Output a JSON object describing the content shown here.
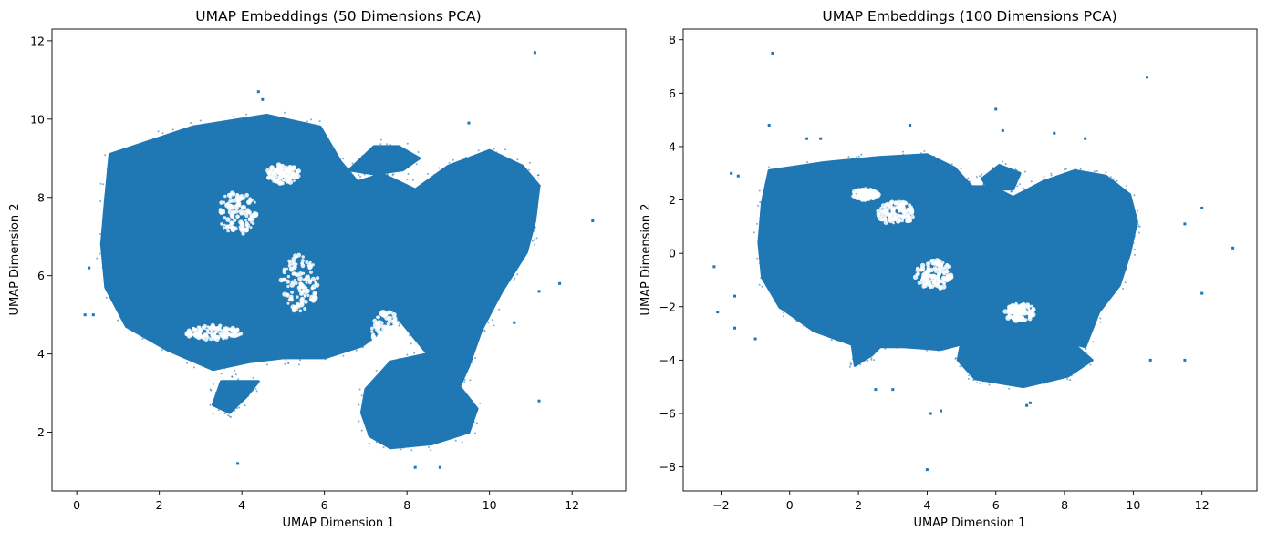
{
  "chart_data": [
    {
      "type": "scatter",
      "title": "UMAP Embeddings (50 Dimensions PCA)",
      "xlabel": "UMAP Dimension 1",
      "ylabel": "UMAP Dimension 2",
      "xlim": [
        -0.6,
        13.3
      ],
      "ylim": [
        0.5,
        12.3
      ],
      "xticks": [
        0,
        2,
        4,
        6,
        8,
        10,
        12
      ],
      "yticks": [
        2,
        4,
        6,
        8,
        10,
        12
      ],
      "grid": false,
      "color": "#1f77b4",
      "clusters": [
        {
          "name": "main-body",
          "points": [
            [
              0.8,
              9.1
            ],
            [
              2.8,
              9.8
            ],
            [
              4.6,
              10.1
            ],
            [
              5.9,
              9.8
            ],
            [
              6.4,
              8.9
            ],
            [
              6.8,
              8.4
            ],
            [
              7.4,
              8.6
            ],
            [
              8.2,
              8.2
            ],
            [
              9.0,
              8.8
            ],
            [
              10.0,
              9.2
            ],
            [
              10.8,
              8.8
            ],
            [
              11.2,
              8.3
            ],
            [
              11.1,
              7.4
            ],
            [
              10.9,
              6.6
            ],
            [
              10.3,
              5.6
            ],
            [
              9.8,
              4.6
            ],
            [
              9.5,
              3.7
            ],
            [
              9.2,
              3.0
            ],
            [
              8.5,
              4.0
            ],
            [
              7.8,
              4.9
            ],
            [
              6.9,
              4.2
            ],
            [
              6.0,
              3.9
            ],
            [
              5.0,
              3.9
            ],
            [
              4.2,
              3.8
            ],
            [
              3.3,
              3.6
            ],
            [
              2.2,
              4.1
            ],
            [
              1.2,
              4.7
            ],
            [
              0.7,
              5.7
            ],
            [
              0.6,
              6.8
            ],
            [
              0.7,
              8.0
            ]
          ]
        },
        {
          "name": "bottom-lobe",
          "points": [
            [
              7.0,
              3.1
            ],
            [
              7.6,
              3.8
            ],
            [
              8.5,
              4.0
            ],
            [
              9.1,
              3.4
            ],
            [
              9.7,
              2.6
            ],
            [
              9.5,
              2.0
            ],
            [
              8.6,
              1.7
            ],
            [
              7.6,
              1.6
            ],
            [
              7.1,
              1.9
            ],
            [
              6.9,
              2.5
            ]
          ]
        },
        {
          "name": "lower-left-tail",
          "points": [
            [
              3.5,
              3.3
            ],
            [
              4.4,
              3.3
            ],
            [
              4.1,
              2.9
            ],
            [
              3.7,
              2.5
            ],
            [
              3.3,
              2.7
            ]
          ]
        },
        {
          "name": "top-blob",
          "points": [
            [
              6.6,
              8.7
            ],
            [
              7.2,
              9.3
            ],
            [
              7.8,
              9.3
            ],
            [
              8.3,
              9.0
            ],
            [
              7.9,
              8.7
            ],
            [
              7.2,
              8.6
            ]
          ]
        }
      ],
      "holes": [
        {
          "cx": 3.9,
          "cy": 7.6,
          "rx": 0.5,
          "ry": 0.55
        },
        {
          "cx": 5.4,
          "cy": 5.8,
          "rx": 0.45,
          "ry": 0.75
        },
        {
          "cx": 3.3,
          "cy": 4.55,
          "rx": 0.7,
          "ry": 0.18
        },
        {
          "cx": 7.5,
          "cy": 4.6,
          "rx": 0.35,
          "ry": 0.5
        },
        {
          "cx": 5.0,
          "cy": 8.6,
          "rx": 0.4,
          "ry": 0.25
        }
      ],
      "outliers": [
        [
          11.1,
          11.7
        ],
        [
          12.5,
          7.4
        ],
        [
          0.3,
          6.2
        ],
        [
          0.2,
          5.0
        ],
        [
          0.4,
          5.0
        ],
        [
          11.7,
          5.8
        ],
        [
          11.2,
          5.6
        ],
        [
          10.6,
          4.8
        ],
        [
          11.2,
          2.8
        ],
        [
          3.9,
          1.2
        ],
        [
          8.2,
          1.1
        ],
        [
          8.8,
          1.1
        ],
        [
          9.5,
          9.9
        ],
        [
          4.4,
          10.7
        ],
        [
          4.5,
          10.5
        ],
        [
          10.9,
          7.0
        ]
      ]
    },
    {
      "type": "scatter",
      "title": "UMAP Embeddings (100 Dimensions PCA)",
      "xlabel": "UMAP Dimension 1",
      "ylabel": "UMAP Dimension 2",
      "xlim": [
        -3.1,
        13.6
      ],
      "ylim": [
        -8.9,
        8.4
      ],
      "xticks": [
        -2,
        0,
        2,
        4,
        6,
        8,
        10,
        12
      ],
      "yticks": [
        -8,
        -6,
        -4,
        -2,
        0,
        2,
        4,
        6,
        8
      ],
      "grid": false,
      "color": "#1f77b4",
      "clusters": [
        {
          "name": "main-body",
          "points": [
            [
              -0.6,
              3.1
            ],
            [
              1.0,
              3.4
            ],
            [
              2.6,
              3.6
            ],
            [
              4.0,
              3.7
            ],
            [
              4.8,
              3.2
            ],
            [
              5.3,
              2.5
            ],
            [
              5.9,
              2.5
            ],
            [
              6.5,
              2.1
            ],
            [
              7.4,
              2.7
            ],
            [
              8.3,
              3.1
            ],
            [
              9.2,
              2.9
            ],
            [
              9.9,
              2.2
            ],
            [
              10.1,
              1.2
            ],
            [
              9.9,
              0.0
            ],
            [
              9.6,
              -1.2
            ],
            [
              9.0,
              -2.2
            ],
            [
              8.6,
              -3.5
            ],
            [
              7.7,
              -3.2
            ],
            [
              6.5,
              -3.0
            ],
            [
              5.3,
              -3.3
            ],
            [
              4.4,
              -3.6
            ],
            [
              3.3,
              -3.5
            ],
            [
              2.0,
              -3.5
            ],
            [
              0.7,
              -2.9
            ],
            [
              -0.3,
              -2.0
            ],
            [
              -0.8,
              -0.9
            ],
            [
              -0.9,
              0.4
            ],
            [
              -0.8,
              1.9
            ]
          ]
        },
        {
          "name": "bottom-lobe",
          "points": [
            [
              5.0,
              -3.3
            ],
            [
              6.6,
              -3.0
            ],
            [
              8.0,
              -3.1
            ],
            [
              8.8,
              -4.0
            ],
            [
              8.1,
              -4.6
            ],
            [
              6.8,
              -5.0
            ],
            [
              5.4,
              -4.7
            ],
            [
              4.9,
              -4.0
            ]
          ]
        },
        {
          "name": "top-blob",
          "points": [
            [
              5.6,
              2.8
            ],
            [
              6.1,
              3.3
            ],
            [
              6.7,
              3.0
            ],
            [
              6.5,
              2.4
            ],
            [
              5.8,
              2.4
            ]
          ]
        },
        {
          "name": "lower-left-tail",
          "points": [
            [
              1.8,
              -3.3
            ],
            [
              2.7,
              -3.4
            ],
            [
              2.4,
              -3.8
            ],
            [
              1.9,
              -4.2
            ]
          ]
        }
      ],
      "holes": [
        {
          "cx": 3.1,
          "cy": 1.5,
          "rx": 0.55,
          "ry": 0.45
        },
        {
          "cx": 4.2,
          "cy": -0.8,
          "rx": 0.55,
          "ry": 0.55
        },
        {
          "cx": 6.7,
          "cy": -2.2,
          "rx": 0.45,
          "ry": 0.35
        },
        {
          "cx": 2.2,
          "cy": 2.2,
          "rx": 0.4,
          "ry": 0.2
        }
      ],
      "outliers": [
        [
          -0.5,
          7.5
        ],
        [
          10.4,
          6.6
        ],
        [
          6.0,
          5.4
        ],
        [
          -0.6,
          4.8
        ],
        [
          3.5,
          4.8
        ],
        [
          0.9,
          4.3
        ],
        [
          0.5,
          4.3
        ],
        [
          6.2,
          4.6
        ],
        [
          7.7,
          4.5
        ],
        [
          8.6,
          4.3
        ],
        [
          -1.7,
          3.0
        ],
        [
          -1.5,
          2.9
        ],
        [
          -2.2,
          -0.5
        ],
        [
          -1.6,
          -1.6
        ],
        [
          -2.1,
          -2.2
        ],
        [
          -1.6,
          -2.8
        ],
        [
          -1.0,
          -3.2
        ],
        [
          12.0,
          1.7
        ],
        [
          11.5,
          1.1
        ],
        [
          12.9,
          0.2
        ],
        [
          12.0,
          -1.5
        ],
        [
          10.5,
          -4.0
        ],
        [
          11.5,
          -4.0
        ],
        [
          4.1,
          -6.0
        ],
        [
          4.4,
          -5.9
        ],
        [
          4.0,
          -8.1
        ],
        [
          3.0,
          -5.1
        ],
        [
          2.5,
          -5.1
        ],
        [
          7.0,
          -5.6
        ],
        [
          6.9,
          -5.7
        ]
      ]
    }
  ]
}
